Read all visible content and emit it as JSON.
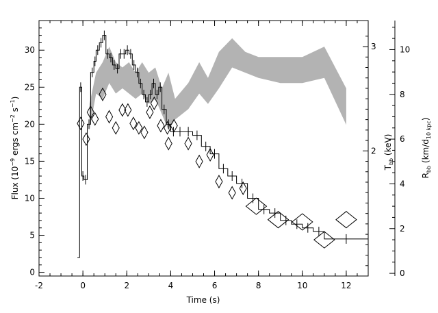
{
  "chart_data": {
    "type": "line",
    "xlabel": "Time (s)",
    "xlim": [
      -2,
      13
    ],
    "x_ticks": [
      -2,
      0,
      2,
      4,
      6,
      8,
      10,
      12
    ],
    "left_axis": {
      "label_main": "Flux (10",
      "label_exp1": "−9",
      "label_mid": " ergs cm",
      "label_exp2": "−2",
      "label_mid2": " s",
      "label_exp3": "−1",
      "label_end": ")",
      "ylim": [
        -0.5,
        34
      ],
      "ticks": [
        0,
        5,
        10,
        15,
        20,
        25,
        30
      ]
    },
    "temp_axis": {
      "label_main": "T",
      "label_sub": "bb",
      "label_end": " (keV)",
      "range": [
        0.8,
        3.25
      ],
      "ticks": [
        2,
        3
      ]
    },
    "radius_axis": {
      "label_main": "R",
      "label_sub": "bb",
      "label_mid": " (km/d",
      "label_sub2": "10 kpc",
      "label_end": ")",
      "range": [
        -0.12,
        11.3
      ],
      "ticks": [
        0,
        2,
        4,
        6,
        8,
        10
      ]
    },
    "series": [
      {
        "type": "step",
        "axis": "left",
        "points": [
          [
            -0.25,
            2.0
          ],
          [
            -0.15,
            25.0
          ],
          [
            -0.05,
            13.0
          ],
          [
            0.05,
            12.5
          ],
          [
            0.2,
            20.0
          ],
          [
            0.35,
            27.0
          ],
          [
            0.5,
            28.5
          ],
          [
            0.6,
            30.0
          ],
          [
            0.75,
            31.0
          ],
          [
            0.9,
            32.0
          ],
          [
            1.05,
            29.5
          ],
          [
            1.2,
            29.0
          ],
          [
            1.35,
            28.0
          ],
          [
            1.5,
            27.5
          ],
          [
            1.65,
            29.5
          ],
          [
            1.8,
            29.5
          ],
          [
            1.95,
            30.0
          ],
          [
            2.1,
            29.5
          ],
          [
            2.25,
            28.0
          ],
          [
            2.4,
            27.0
          ],
          [
            2.55,
            25.5
          ],
          [
            2.7,
            24.0
          ],
          [
            2.85,
            23.0
          ],
          [
            3.0,
            24.0
          ],
          [
            3.15,
            25.5
          ],
          [
            3.3,
            24.0
          ],
          [
            3.45,
            25.0
          ],
          [
            3.6,
            22.0
          ],
          [
            3.8,
            20.0
          ],
          [
            4.0,
            19.0
          ],
          [
            4.25,
            19.0
          ],
          [
            4.6,
            19.0
          ],
          [
            5.0,
            18.5
          ],
          [
            5.4,
            17.0
          ],
          [
            5.8,
            16.0
          ],
          [
            6.2,
            14.0
          ],
          [
            6.6,
            13.0
          ],
          [
            7.0,
            12.0
          ],
          [
            7.5,
            10.0
          ],
          [
            8.0,
            8.5
          ],
          [
            8.5,
            8.0
          ],
          [
            9.0,
            7.0
          ],
          [
            9.5,
            6.5
          ],
          [
            10.0,
            6.0
          ],
          [
            10.5,
            5.5
          ],
          [
            11.0,
            4.5
          ],
          [
            13.0,
            4.5
          ]
        ]
      },
      {
        "type": "band",
        "axis": "temp",
        "x": [
          0.3,
          0.6,
          0.9,
          1.2,
          1.5,
          1.8,
          2.1,
          2.4,
          2.7,
          3.0,
          3.3,
          3.6,
          3.9,
          4.2,
          4.8,
          5.3,
          5.7,
          6.2,
          6.8,
          7.4,
          8.0,
          9.0,
          10.0,
          11.0,
          12.0
        ],
        "upper": [
          2.45,
          2.75,
          2.85,
          3.0,
          2.85,
          2.8,
          2.85,
          2.75,
          2.85,
          2.75,
          2.8,
          2.6,
          2.75,
          2.5,
          2.65,
          2.85,
          2.7,
          2.95,
          3.08,
          2.95,
          2.9,
          2.9,
          2.9,
          3.0,
          2.6
        ],
        "lower": [
          2.2,
          2.55,
          2.5,
          2.65,
          2.55,
          2.6,
          2.55,
          2.5,
          2.55,
          2.45,
          2.5,
          2.35,
          2.2,
          2.3,
          2.4,
          2.55,
          2.45,
          2.6,
          2.8,
          2.75,
          2.7,
          2.65,
          2.65,
          2.7,
          2.25
        ]
      },
      {
        "type": "diamonds",
        "axis": "radius",
        "points": [
          [
            -0.1,
            6.7
          ],
          [
            0.15,
            6.0
          ],
          [
            0.35,
            7.2
          ],
          [
            0.55,
            6.9
          ],
          [
            0.9,
            8.0
          ],
          [
            1.2,
            7.0
          ],
          [
            1.5,
            6.5
          ],
          [
            1.8,
            7.3
          ],
          [
            2.05,
            7.3
          ],
          [
            2.3,
            6.7
          ],
          [
            2.55,
            6.5
          ],
          [
            2.8,
            6.3
          ],
          [
            3.05,
            7.2
          ],
          [
            3.25,
            7.6
          ],
          [
            3.55,
            6.6
          ],
          [
            3.85,
            6.5
          ],
          [
            4.15,
            6.6
          ],
          [
            3.9,
            5.8
          ],
          [
            4.8,
            5.8
          ],
          [
            5.3,
            5.0
          ],
          [
            5.8,
            5.3
          ],
          [
            6.2,
            4.1
          ],
          [
            6.8,
            3.6
          ],
          [
            7.3,
            3.8
          ],
          [
            7.9,
            3.0
          ],
          [
            8.9,
            2.4
          ],
          [
            10.0,
            2.3
          ],
          [
            11.0,
            1.5
          ],
          [
            12.0,
            2.4
          ]
        ],
        "sizes": [
          2,
          2,
          2,
          2,
          2,
          2,
          2,
          2,
          2,
          2,
          2,
          2,
          2,
          2,
          2,
          2,
          2,
          2,
          2,
          2,
          2,
          2,
          2,
          2,
          3,
          3,
          3,
          3,
          3
        ]
      }
    ]
  }
}
